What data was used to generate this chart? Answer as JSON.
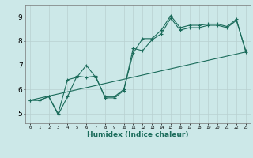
{
  "title": "",
  "xlabel": "Humidex (Indice chaleur)",
  "ylabel": "",
  "xlim": [
    -0.5,
    23.5
  ],
  "ylim": [
    4.6,
    9.5
  ],
  "yticks": [
    5,
    6,
    7,
    8,
    9
  ],
  "xticks": [
    0,
    1,
    2,
    3,
    4,
    5,
    6,
    7,
    8,
    9,
    10,
    11,
    12,
    13,
    14,
    15,
    16,
    17,
    18,
    19,
    20,
    21,
    22,
    23
  ],
  "bg_color": "#cce8e8",
  "line_color": "#1a6b5a",
  "grid_color": "#b8d0d0",
  "series1_x": [
    0,
    1,
    2,
    3,
    4,
    5,
    6,
    7,
    8,
    9,
    10,
    11,
    12,
    13,
    14,
    15,
    16,
    17,
    18,
    19,
    20,
    21,
    22,
    23
  ],
  "series1_y": [
    5.55,
    5.55,
    5.7,
    5.0,
    6.4,
    6.5,
    7.0,
    6.5,
    5.7,
    5.7,
    6.0,
    7.5,
    8.1,
    8.1,
    8.45,
    9.05,
    8.55,
    8.65,
    8.65,
    8.7,
    8.7,
    8.6,
    8.9,
    7.55
  ],
  "series2_x": [
    0,
    1,
    2,
    3,
    4,
    5,
    6,
    7,
    8,
    9,
    10,
    11,
    12,
    13,
    14,
    15,
    16,
    17,
    18,
    19,
    20,
    21,
    22,
    23
  ],
  "series2_y": [
    5.55,
    5.55,
    5.7,
    4.95,
    5.7,
    6.55,
    6.5,
    6.55,
    5.65,
    5.65,
    5.95,
    7.7,
    7.6,
    8.05,
    8.3,
    8.95,
    8.45,
    8.55,
    8.55,
    8.65,
    8.65,
    8.55,
    8.85,
    7.6
  ],
  "series3_x": [
    0,
    23
  ],
  "series3_y": [
    5.55,
    7.55
  ]
}
